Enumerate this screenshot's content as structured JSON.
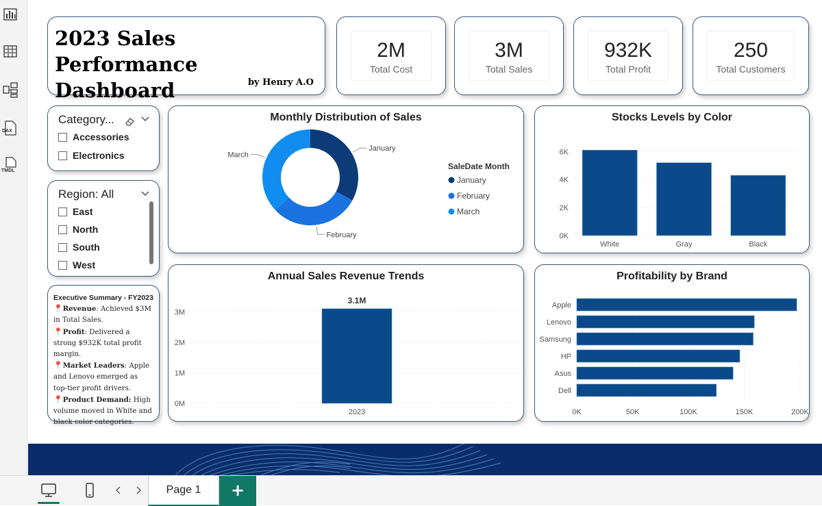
{
  "rail": {
    "icons": [
      "report-view-icon",
      "table-view-icon",
      "model-view-icon",
      "dax-query-icon",
      "tmdl-view-icon"
    ],
    "dax_label": "DAX",
    "tmdl_label": "TMDL"
  },
  "title_card": {
    "title_line1": "2023 Sales Performance",
    "title_line2": "Dashboard",
    "byline": "by Henry A.O"
  },
  "kpis": [
    {
      "value": "2M",
      "label": "Total Cost"
    },
    {
      "value": "3M",
      "label": "Total Sales"
    },
    {
      "value": "932K",
      "label": "Total Profit"
    },
    {
      "value": "250",
      "label": "Total Customers"
    }
  ],
  "category_slicer": {
    "header": "Category...",
    "items": [
      "Accessories",
      "Electronics"
    ]
  },
  "region_slicer": {
    "header": "Region: All",
    "items": [
      "East",
      "North",
      "South",
      "West"
    ]
  },
  "summary": {
    "title": "Executive Summary - FY2023",
    "points": [
      {
        "label": "Revenue",
        "text": ": Achieved $3M in Total Sales."
      },
      {
        "label": "Profit",
        "text": ": Delivered a strong $932K total profit margin."
      },
      {
        "label": "Market Leaders",
        "text": ": Apple and Lenovo emerged as top-tier profit drivers."
      },
      {
        "label": "Product Demand:",
        "text": " High volume moved in White and black color categories."
      }
    ]
  },
  "chart_data": [
    {
      "type": "pie",
      "title": "Monthly Distribution of Sales",
      "legend_title": "SaleDate Month",
      "legend_position": "right",
      "categories": [
        "January",
        "February",
        "March"
      ],
      "values": [
        33,
        30,
        37
      ],
      "colors": [
        "#0c3b78",
        "#1a73e0",
        "#118df0"
      ]
    },
    {
      "type": "bar",
      "title": "Stocks Levels by Color",
      "categories": [
        "White",
        "Gray",
        "Black"
      ],
      "values": [
        6100,
        5200,
        4300
      ],
      "yticks": [
        "0K",
        "2K",
        "4K",
        "6K"
      ],
      "ylim": [
        0,
        6700
      ],
      "grid": true,
      "color": "#0a4a8a"
    },
    {
      "type": "bar",
      "title": "Annual Sales Revenue Trends",
      "categories": [
        "2023"
      ],
      "values": [
        3100000
      ],
      "data_labels": [
        "3.1M"
      ],
      "yticks": [
        "0M",
        "1M",
        "2M",
        "3M"
      ],
      "ylim": [
        0,
        3300000
      ],
      "grid": true,
      "color": "#0a4a8a"
    },
    {
      "type": "bar",
      "orientation": "horizontal",
      "title": "Profitability by Brand",
      "categories": [
        "Apple",
        "Lenovo",
        "Samsung",
        "HP",
        "Asus",
        "Dell"
      ],
      "values": [
        197000,
        159000,
        158000,
        146000,
        140000,
        125000
      ],
      "xticks": [
        "0K",
        "50K",
        "100K",
        "150K",
        "200K"
      ],
      "xlim": [
        0,
        200000
      ],
      "grid": true,
      "color": "#0a4a8a"
    }
  ],
  "bottom_bar": {
    "page_tab": "Page 1",
    "add_label": "+",
    "accent": "#117865"
  },
  "colors": {
    "banner": "#0b2c6b",
    "card_border": "#3a5a78"
  }
}
